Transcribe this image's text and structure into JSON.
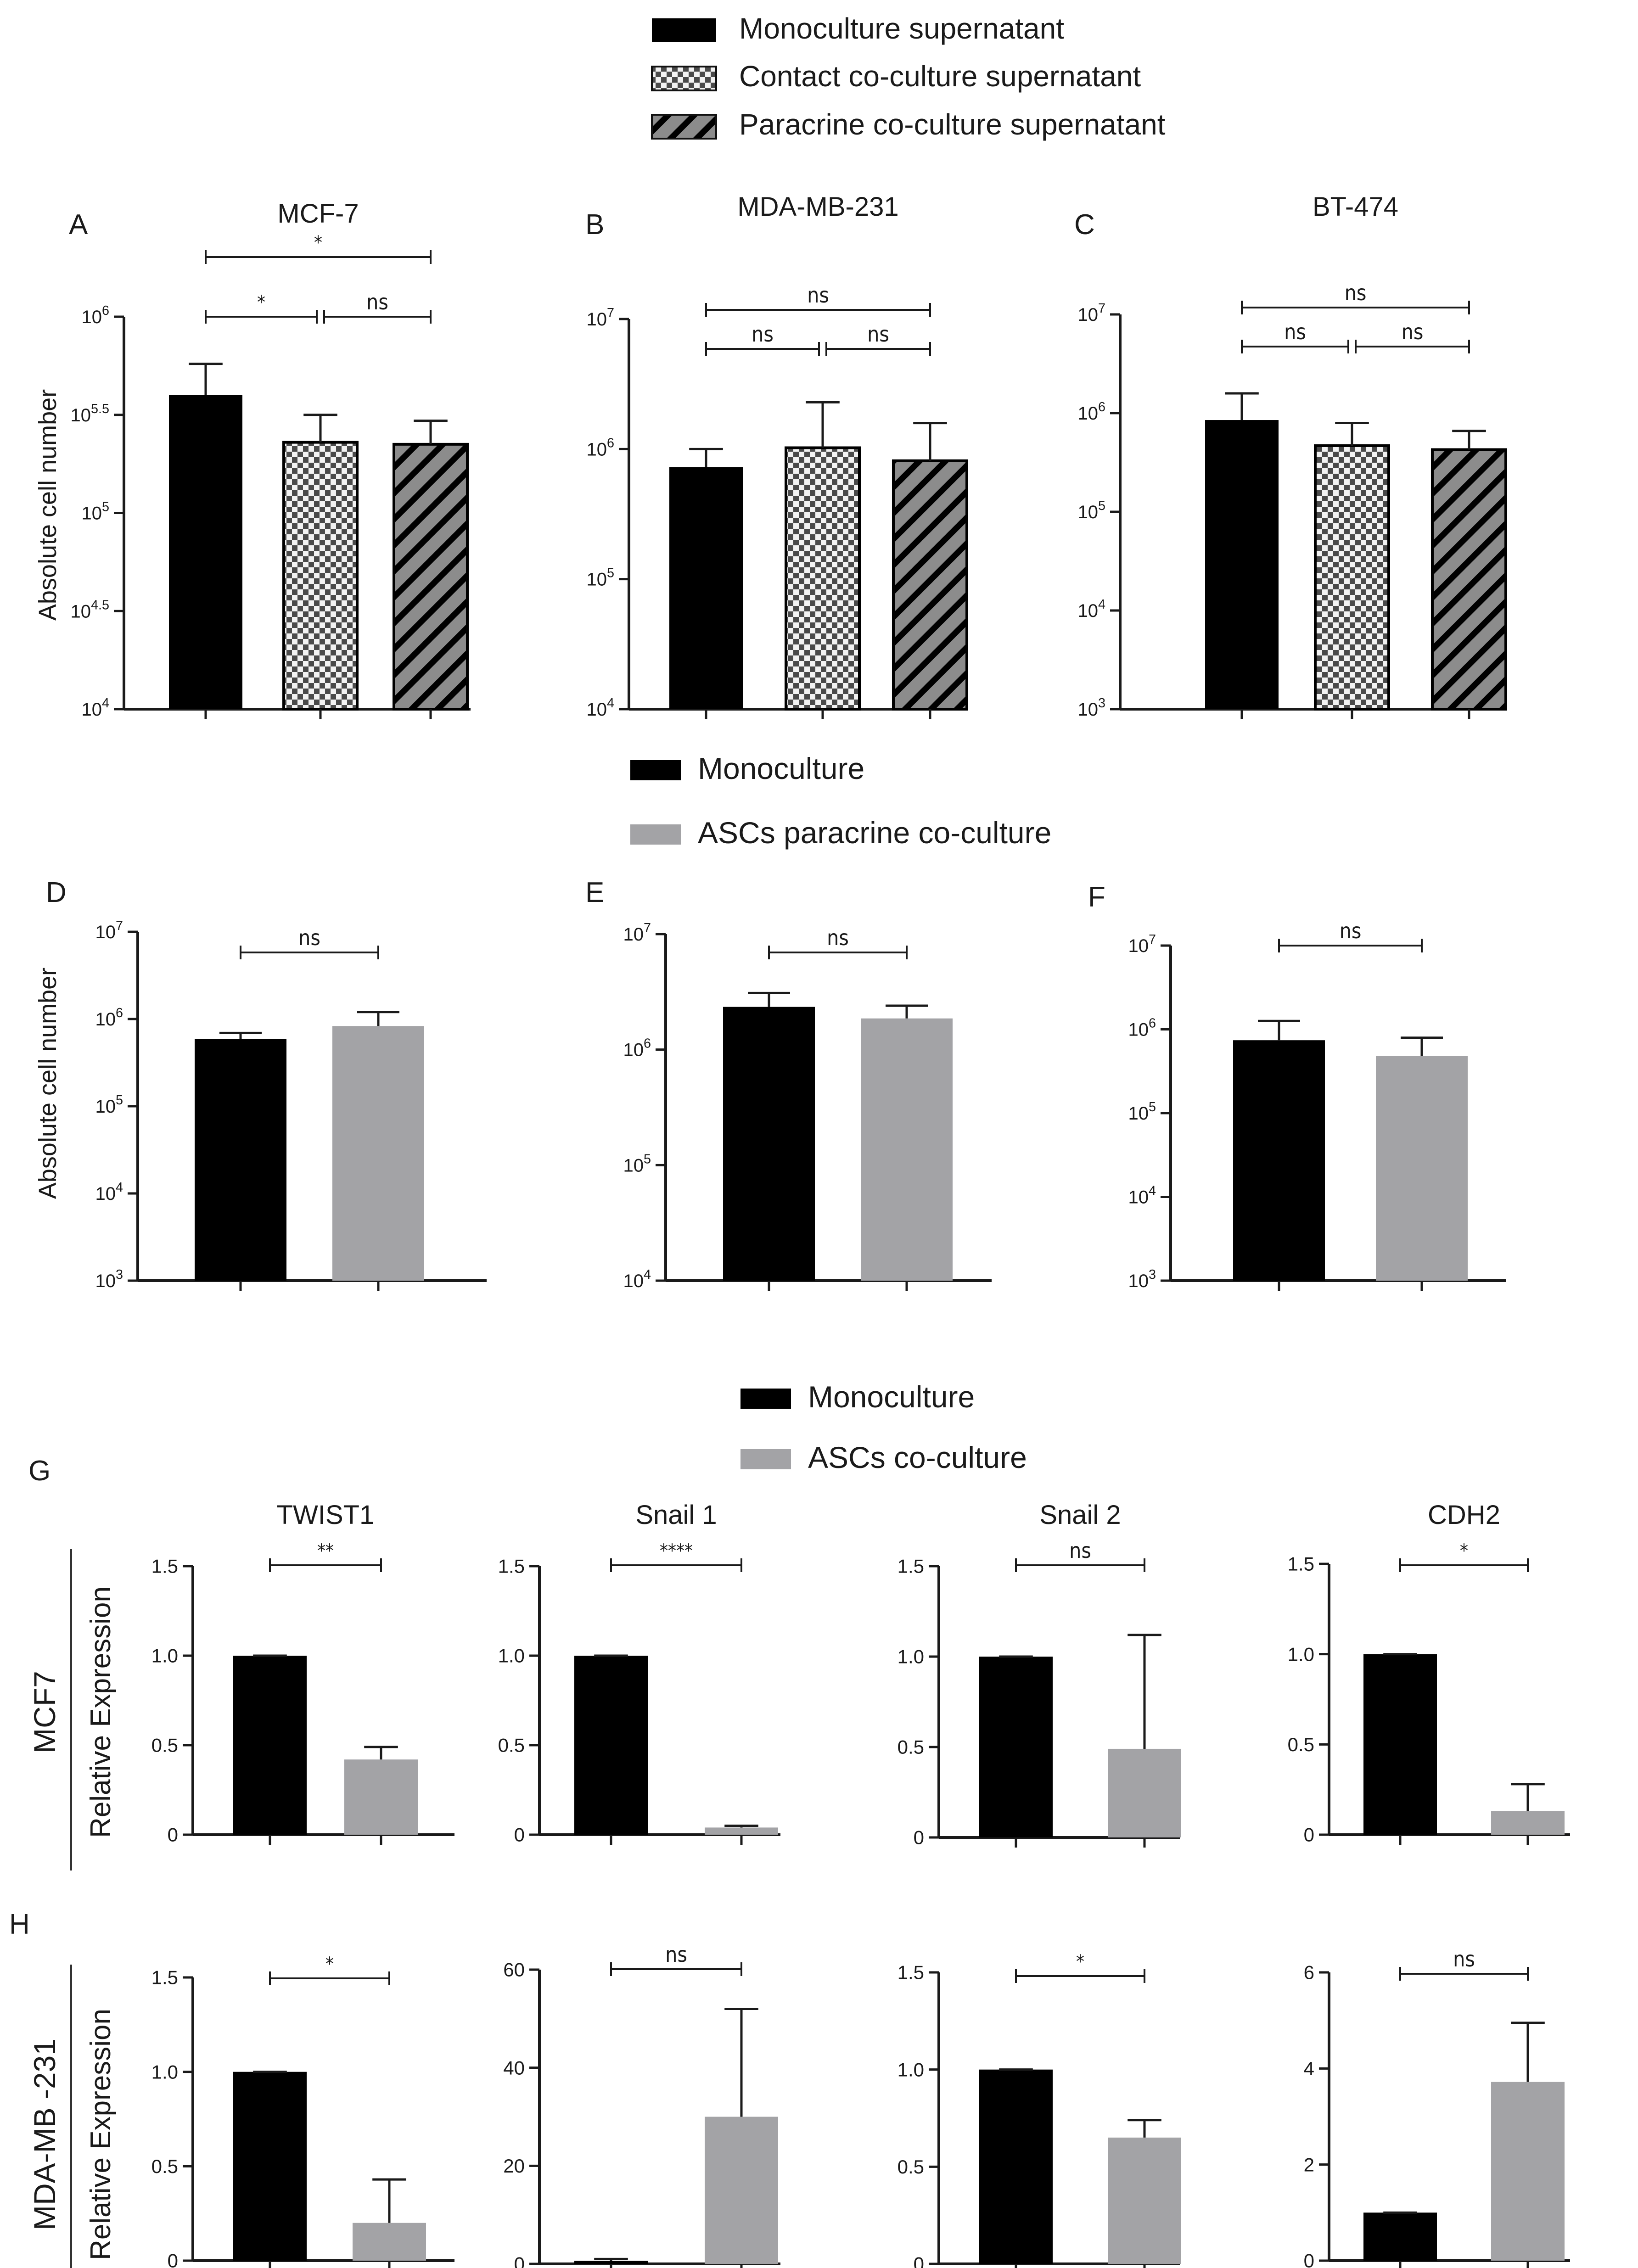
{
  "legends": {
    "top": [
      {
        "label": "Monoculture supernatant",
        "pattern": "solid"
      },
      {
        "label": "Contact co-culture supernatant",
        "pattern": "checker"
      },
      {
        "label": "Paracrine co-culture supernatant",
        "pattern": "stripe"
      }
    ],
    "middle": [
      {
        "label": "Monoculture",
        "color": "#000000"
      },
      {
        "label": "ASCs paracrine co-culture",
        "color": "#a3a3a6"
      }
    ],
    "lower": [
      {
        "label": "Monoculture",
        "color": "#000000"
      },
      {
        "label": "ASCs co-culture",
        "color": "#a3a3a6"
      }
    ]
  },
  "axis_titles": {
    "cell_number": "Absolute cell number",
    "relative_expression": "Relative Expression"
  },
  "row_labels": {
    "G": "MCF7",
    "H": "MDA-MB -231"
  },
  "colors": {
    "mono": "#000000",
    "gray": "#a3a3a6",
    "pattern_gray": "#8c8c8c",
    "axis": "#1a1a1a"
  },
  "chart_data": [
    {
      "id": "A",
      "type": "bar",
      "title": "MCF-7",
      "scale": "log10",
      "ylim": [
        4,
        6
      ],
      "ticks": [
        {
          "value": 4,
          "base": "10",
          "exp": "4"
        },
        {
          "value": 4.5,
          "base": "10",
          "exp": "4.5"
        },
        {
          "value": 5,
          "base": "10",
          "exp": "5"
        },
        {
          "value": 5.5,
          "base": "10",
          "exp": "5.5"
        },
        {
          "value": 6,
          "base": "10",
          "exp": "6"
        }
      ],
      "categories": [
        "Monoculture supernatant",
        "Contact co-culture supernatant",
        "Paracrine co-culture supernatant"
      ],
      "values": [
        5.6,
        5.36,
        5.35
      ],
      "errors": [
        5.76,
        5.5,
        5.47
      ],
      "sig": [
        {
          "from": 0,
          "to": 2,
          "text": "*"
        },
        {
          "from": 0,
          "to": 1,
          "text": "*"
        },
        {
          "from": 1,
          "to": 2,
          "text": "ns"
        }
      ]
    },
    {
      "id": "B",
      "type": "bar",
      "title": "MDA-MB-231",
      "scale": "log10",
      "ylim": [
        4,
        7
      ],
      "ticks": [
        {
          "value": 4,
          "base": "10",
          "exp": "4"
        },
        {
          "value": 5,
          "base": "10",
          "exp": "5"
        },
        {
          "value": 6,
          "base": "10",
          "exp": "6"
        },
        {
          "value": 7,
          "base": "10",
          "exp": "7"
        }
      ],
      "categories": [
        "Monoculture supernatant",
        "Contact co-culture supernatant",
        "Paracrine co-culture supernatant"
      ],
      "values": [
        5.86,
        6.01,
        5.91
      ],
      "errors": [
        6.0,
        6.36,
        6.2
      ],
      "sig": [
        {
          "from": 0,
          "to": 2,
          "text": "ns"
        },
        {
          "from": 0,
          "to": 1,
          "text": "ns"
        },
        {
          "from": 1,
          "to": 2,
          "text": "ns"
        }
      ]
    },
    {
      "id": "C",
      "type": "bar",
      "title": "BT-474",
      "scale": "log10",
      "ylim": [
        3,
        7
      ],
      "ticks": [
        {
          "value": 3,
          "base": "10",
          "exp": "3"
        },
        {
          "value": 4,
          "base": "10",
          "exp": "4"
        },
        {
          "value": 5,
          "base": "10",
          "exp": "5"
        },
        {
          "value": 6,
          "base": "10",
          "exp": "6"
        },
        {
          "value": 7,
          "base": "10",
          "exp": "7"
        }
      ],
      "categories": [
        "Monoculture supernatant",
        "Contact co-culture supernatant",
        "Paracrine co-culture supernatant"
      ],
      "values": [
        5.93,
        5.67,
        5.63
      ],
      "errors": [
        6.2,
        5.9,
        5.82
      ],
      "sig": [
        {
          "from": 0,
          "to": 2,
          "text": "ns"
        },
        {
          "from": 0,
          "to": 1,
          "text": "ns"
        },
        {
          "from": 1,
          "to": 2,
          "text": "ns"
        }
      ]
    },
    {
      "id": "D",
      "type": "bar",
      "title": "",
      "scale": "log10",
      "ylim": [
        3,
        7
      ],
      "ticks": [
        {
          "value": 3,
          "base": "10",
          "exp": "3"
        },
        {
          "value": 4,
          "base": "10",
          "exp": "4"
        },
        {
          "value": 5,
          "base": "10",
          "exp": "5"
        },
        {
          "value": 6,
          "base": "10",
          "exp": "6"
        },
        {
          "value": 7,
          "base": "10",
          "exp": "7"
        }
      ],
      "categories": [
        "Monoculture",
        "ASCs paracrine co-culture"
      ],
      "values": [
        5.77,
        5.92
      ],
      "errors": [
        5.84,
        6.08
      ],
      "sig": [
        {
          "from": 0,
          "to": 1,
          "text": "ns"
        }
      ]
    },
    {
      "id": "E",
      "type": "bar",
      "title": "",
      "scale": "log10",
      "ylim": [
        4,
        7
      ],
      "ticks": [
        {
          "value": 4,
          "base": "10",
          "exp": "4"
        },
        {
          "value": 5,
          "base": "10",
          "exp": "5"
        },
        {
          "value": 6,
          "base": "10",
          "exp": "6"
        },
        {
          "value": 7,
          "base": "10",
          "exp": "7"
        }
      ],
      "categories": [
        "Monoculture",
        "ASCs paracrine co-culture"
      ],
      "values": [
        6.37,
        6.27
      ],
      "errors": [
        6.49,
        6.38
      ],
      "sig": [
        {
          "from": 0,
          "to": 1,
          "text": "ns"
        }
      ]
    },
    {
      "id": "F",
      "type": "bar",
      "title": "",
      "scale": "log10",
      "ylim": [
        3,
        7
      ],
      "ticks": [
        {
          "value": 3,
          "base": "10",
          "exp": "3"
        },
        {
          "value": 4,
          "base": "10",
          "exp": "4"
        },
        {
          "value": 5,
          "base": "10",
          "exp": "5"
        },
        {
          "value": 6,
          "base": "10",
          "exp": "6"
        },
        {
          "value": 7,
          "base": "10",
          "exp": "7"
        }
      ],
      "categories": [
        "Monoculture",
        "ASCs paracrine co-culture"
      ],
      "values": [
        5.87,
        5.68
      ],
      "errors": [
        6.1,
        5.9
      ],
      "sig": [
        {
          "from": 0,
          "to": 1,
          "text": "ns"
        }
      ]
    },
    {
      "id": "G1",
      "type": "bar",
      "title": "TWIST1",
      "scale": "linear",
      "ylim": [
        0,
        1.5
      ],
      "ticks": [
        {
          "value": 0,
          "label": "0"
        },
        {
          "value": 0.5,
          "label": "0.5"
        },
        {
          "value": 1.0,
          "label": "1.0"
        },
        {
          "value": 1.5,
          "label": "1.5"
        }
      ],
      "categories": [
        "Monoculture",
        "ASCs co-culture"
      ],
      "values": [
        1.0,
        0.42
      ],
      "errors": [
        1.0,
        0.49
      ],
      "sig": [
        {
          "from": 0,
          "to": 1,
          "text": "**"
        }
      ]
    },
    {
      "id": "G2",
      "type": "bar",
      "title": "Snail 1",
      "scale": "linear",
      "ylim": [
        0,
        1.5
      ],
      "ticks": [
        {
          "value": 0,
          "label": "0"
        },
        {
          "value": 0.5,
          "label": "0.5"
        },
        {
          "value": 1.0,
          "label": "1.0"
        },
        {
          "value": 1.5,
          "label": "1.5"
        }
      ],
      "categories": [
        "Monoculture",
        "ASCs co-culture"
      ],
      "values": [
        1.0,
        0.04
      ],
      "errors": [
        1.0,
        0.05
      ],
      "sig": [
        {
          "from": 0,
          "to": 1,
          "text": "****"
        }
      ]
    },
    {
      "id": "G3",
      "type": "bar",
      "title": "Snail 2",
      "scale": "linear",
      "ylim": [
        0,
        1.5
      ],
      "ticks": [
        {
          "value": 0,
          "label": "0"
        },
        {
          "value": 0.5,
          "label": "0.5"
        },
        {
          "value": 1.0,
          "label": "1.0"
        },
        {
          "value": 1.5,
          "label": "1.5"
        }
      ],
      "categories": [
        "Monoculture",
        "ASCs co-culture"
      ],
      "values": [
        1.0,
        0.49
      ],
      "errors": [
        1.0,
        1.12
      ],
      "sig": [
        {
          "from": 0,
          "to": 1,
          "text": "ns"
        }
      ]
    },
    {
      "id": "G4",
      "type": "bar",
      "title": "CDH2",
      "scale": "linear",
      "ylim": [
        0,
        1.5
      ],
      "ticks": [
        {
          "value": 0,
          "label": "0"
        },
        {
          "value": 0.5,
          "label": "0.5"
        },
        {
          "value": 1.0,
          "label": "1.0"
        },
        {
          "value": 1.5,
          "label": "1.5"
        }
      ],
      "categories": [
        "Monoculture",
        "ASCs co-culture"
      ],
      "values": [
        1.0,
        0.13
      ],
      "errors": [
        1.0,
        0.28
      ],
      "sig": [
        {
          "from": 0,
          "to": 1,
          "text": "*"
        }
      ]
    },
    {
      "id": "H1",
      "type": "bar",
      "title": "",
      "scale": "linear",
      "ylim": [
        0,
        1.5
      ],
      "ticks": [
        {
          "value": 0,
          "label": "0"
        },
        {
          "value": 0.5,
          "label": "0.5"
        },
        {
          "value": 1.0,
          "label": "1.0"
        },
        {
          "value": 1.5,
          "label": "1.5"
        }
      ],
      "categories": [
        "Monoculture",
        "ASCs co-culture"
      ],
      "values": [
        1.0,
        0.2
      ],
      "errors": [
        1.0,
        0.43
      ],
      "sig": [
        {
          "from": 0,
          "to": 1,
          "text": "*"
        }
      ]
    },
    {
      "id": "H2",
      "type": "bar",
      "title": "",
      "scale": "linear",
      "ylim": [
        0,
        60
      ],
      "ticks": [
        {
          "value": 0,
          "label": "0"
        },
        {
          "value": 20,
          "label": "20"
        },
        {
          "value": 40,
          "label": "40"
        },
        {
          "value": 60,
          "label": "60"
        }
      ],
      "categories": [
        "Monoculture",
        "ASCs co-culture"
      ],
      "values": [
        0.6,
        30
      ],
      "errors": [
        1.0,
        52
      ],
      "sig": [
        {
          "from": 0,
          "to": 1,
          "text": "ns"
        }
      ]
    },
    {
      "id": "H3",
      "type": "bar",
      "title": "",
      "scale": "linear",
      "ylim": [
        0,
        1.5
      ],
      "ticks": [
        {
          "value": 0,
          "label": "0"
        },
        {
          "value": 0.5,
          "label": "0.5"
        },
        {
          "value": 1.0,
          "label": "1.0"
        },
        {
          "value": 1.5,
          "label": "1.5"
        }
      ],
      "categories": [
        "Monoculture",
        "ASCs co-culture"
      ],
      "values": [
        1.0,
        0.65
      ],
      "errors": [
        1.0,
        0.74
      ],
      "sig": [
        {
          "from": 0,
          "to": 1,
          "text": "*"
        }
      ]
    },
    {
      "id": "H4",
      "type": "bar",
      "title": "",
      "scale": "linear",
      "ylim": [
        0,
        6
      ],
      "ticks": [
        {
          "value": 0,
          "label": "0"
        },
        {
          "value": 2,
          "label": "2"
        },
        {
          "value": 4,
          "label": "4"
        },
        {
          "value": 6,
          "label": "6"
        }
      ],
      "categories": [
        "Monoculture",
        "ASCs co-culture"
      ],
      "values": [
        1.0,
        3.72
      ],
      "errors": [
        1.0,
        4.95
      ],
      "sig": [
        {
          "from": 0,
          "to": 1,
          "text": "ns"
        }
      ]
    }
  ]
}
